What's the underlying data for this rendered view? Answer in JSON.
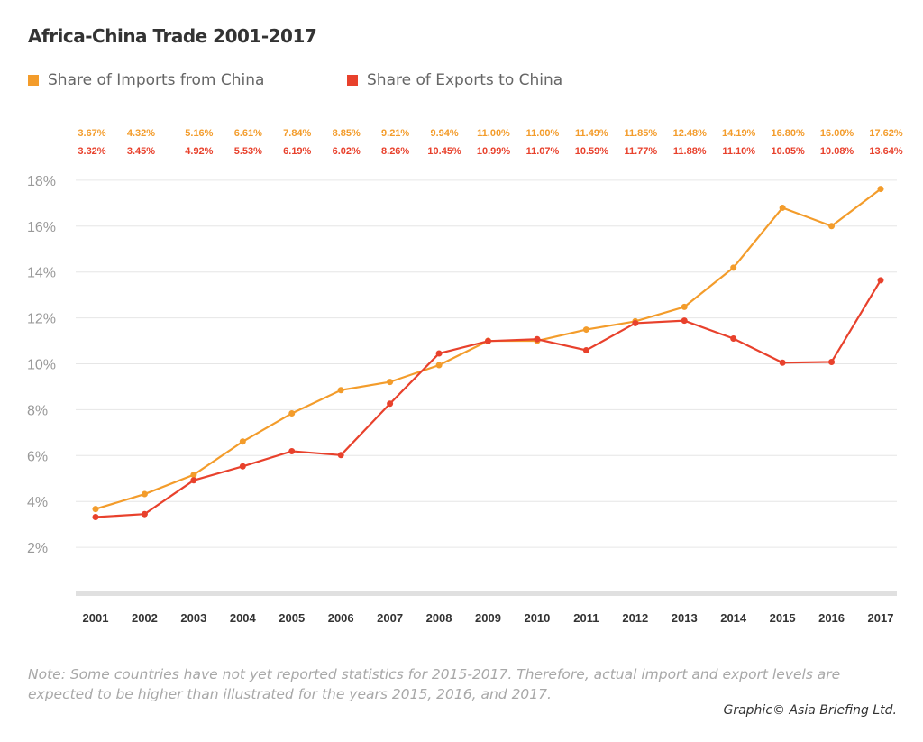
{
  "chart_data": {
    "type": "line",
    "title": "Africa-China Trade 2001-2017",
    "x": [
      "2001",
      "2002",
      "2003",
      "2004",
      "2005",
      "2006",
      "2007",
      "2008",
      "2009",
      "2010",
      "2011",
      "2012",
      "2013",
      "2014",
      "2015",
      "2016",
      "2017"
    ],
    "series": [
      {
        "name": "Share of Imports from China",
        "color": "#f39c2b",
        "values": [
          3.67,
          4.32,
          5.16,
          6.61,
          7.84,
          8.85,
          9.21,
          9.94,
          11.0,
          11.0,
          11.49,
          11.85,
          12.48,
          14.19,
          16.8,
          16.0,
          17.62
        ],
        "labels": [
          "3.67%",
          "4.32%",
          "5.16%",
          "6.61%",
          "7.84%",
          "8.85%",
          "9.21%",
          "9.94%",
          "11.00%",
          "11.00%",
          "11.49%",
          "11.85%",
          "12.48%",
          "14.19%",
          "16.80%",
          "16.00%",
          "17.62%"
        ]
      },
      {
        "name": "Share of Exports to China",
        "color": "#e8412c",
        "values": [
          3.32,
          3.45,
          4.92,
          5.53,
          6.19,
          6.02,
          8.26,
          10.45,
          10.99,
          11.07,
          10.59,
          11.77,
          11.88,
          11.1,
          10.05,
          10.08,
          13.64
        ],
        "labels": [
          "3.32%",
          "3.45%",
          "4.92%",
          "5.53%",
          "6.19%",
          "6.02%",
          "8.26%",
          "10.45%",
          "10.99%",
          "11.07%",
          "10.59%",
          "11.77%",
          "11.88%",
          "11.10%",
          "10.05%",
          "10.08%",
          "13.64%"
        ]
      }
    ],
    "yticks": [
      2,
      4,
      6,
      8,
      10,
      12,
      14,
      16,
      18
    ],
    "ytick_labels": [
      "2%",
      "4%",
      "6%",
      "8%",
      "10%",
      "12%",
      "14%",
      "16%",
      "18%"
    ],
    "ylim": [
      0,
      18
    ],
    "grid": true,
    "legend": "top-left"
  },
  "note": "Note: Some countries have not yet reported statistics for 2015-2017. Therefore, actual import and export levels are expected to be higher than illustrated for the years 2015, 2016, and 2017.",
  "credit": "Graphic© Asia Briefing Ltd."
}
